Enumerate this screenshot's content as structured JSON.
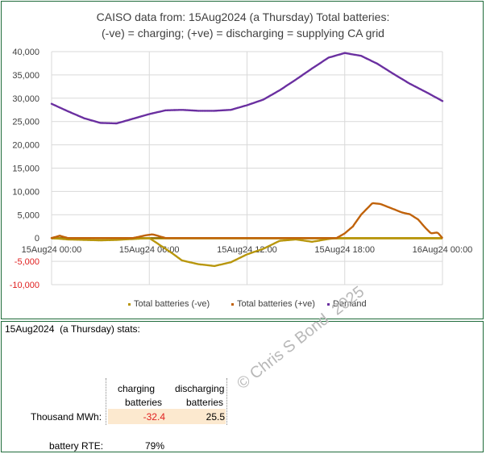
{
  "chart_data": {
    "type": "line",
    "title_line1": "CAISO data from:  15Aug2024  (a Thursday)   Total batteries:",
    "title_line2": "(-ve) = charging;   (+ve) = discharging = supplying CA grid",
    "ylim": [
      -10000,
      40000
    ],
    "y_ticks": [
      "40,000",
      "35,000",
      "30,000",
      "25,000",
      "20,000",
      "15,000",
      "10,000",
      "5,000",
      "0",
      "-5,000",
      "-10,000"
    ],
    "x_ticks": [
      "15Aug24 00:00",
      "15Aug24 06:00",
      "15Aug24 12:00",
      "15Aug24 18:00",
      "16Aug24 00:00"
    ],
    "legend": [
      "Total batteries (-ve)",
      "Total batteries (+ve)",
      "Demand"
    ],
    "colors": {
      "charging": "#b8960c",
      "discharging": "#c0620a",
      "demand": "#6a2fa0",
      "grid": "#d9d9d9"
    },
    "series": [
      {
        "name": "Demand",
        "x_hours": [
          0,
          1,
          2,
          3,
          4,
          5,
          6,
          7,
          8,
          9,
          10,
          11,
          12,
          13,
          14,
          15,
          16,
          17,
          18,
          19,
          20,
          21,
          22,
          23,
          24
        ],
        "values": [
          28800,
          27200,
          25700,
          24700,
          24600,
          25600,
          26600,
          27400,
          27500,
          27300,
          27300,
          27500,
          28500,
          29700,
          31700,
          34000,
          36400,
          38700,
          39700,
          39100,
          37400,
          35200,
          33100,
          31300,
          29400
        ]
      },
      {
        "name": "Total batteries (-ve)",
        "x_hours": [
          0,
          1,
          2,
          3,
          4,
          5,
          6,
          7,
          7.5,
          8,
          9,
          10,
          11,
          12,
          13,
          14,
          15,
          16,
          17,
          17.5,
          18,
          24
        ],
        "values": [
          0,
          -300,
          -400,
          -500,
          -400,
          -200,
          0,
          -2300,
          -3500,
          -4800,
          -5600,
          -6000,
          -5200,
          -3500,
          -2300,
          -600,
          -300,
          -800,
          -200,
          0,
          0,
          0
        ]
      },
      {
        "name": "Total batteries (+ve)",
        "x_hours": [
          0,
          0.2,
          0.5,
          1,
          5,
          5.8,
          6.2,
          7,
          17.5,
          18,
          18.5,
          19,
          19.7,
          20.2,
          21,
          21.5,
          22,
          22.5,
          23,
          23.3,
          23.7,
          24
        ],
        "values": [
          0,
          200,
          500,
          0,
          0,
          600,
          800,
          0,
          0,
          1000,
          2500,
          5000,
          7500,
          7300,
          6200,
          5500,
          5100,
          4000,
          2000,
          1000,
          1200,
          0
        ]
      }
    ]
  },
  "stats": {
    "header": "15Aug2024  (a Thursday) stats:",
    "col1_line1": "charging",
    "col1_line2": "batteries",
    "col2_line1": "discharging",
    "col2_line2": "batteries",
    "row_label": "Thousand MWh:",
    "charging_value": "-32.4",
    "discharging_value": "25.5",
    "rte_label": "battery RTE:",
    "rte_value": "79%"
  },
  "watermark": "© Chris S Bond  2025"
}
